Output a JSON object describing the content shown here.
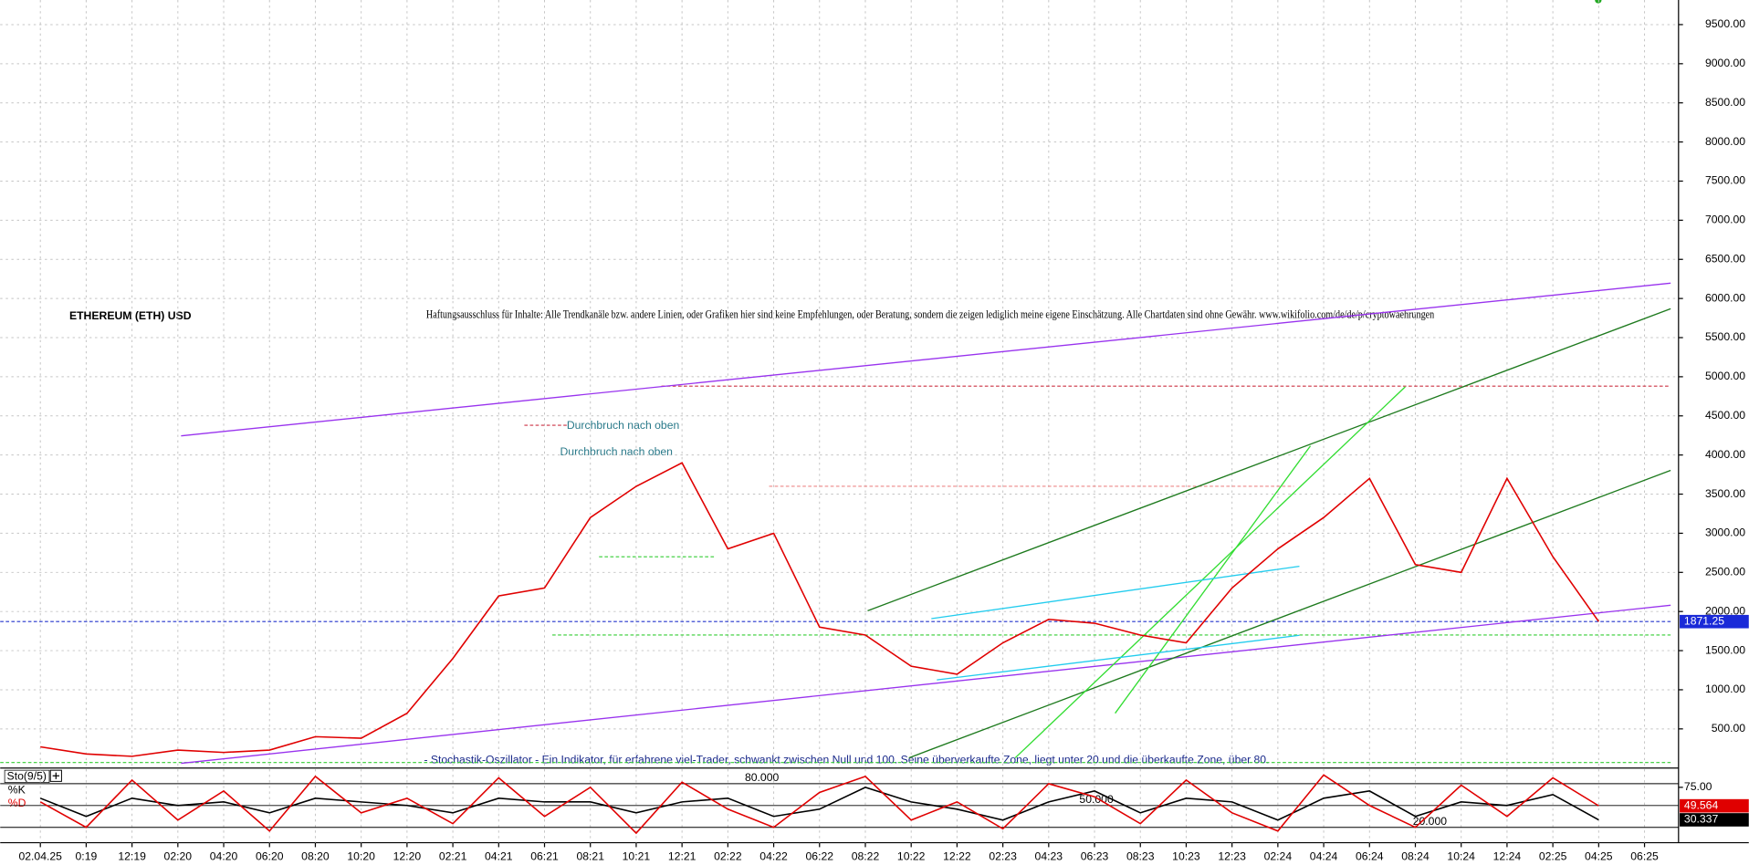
{
  "chart_data": [
    {
      "type": "line",
      "title": "ETHEREUM (ETH) USD",
      "disclaimer": "Haftungsausschluss für Inhalte: Alle Trendkanäle bzw. andere Linien, oder Grafiken hier sind keine Empfehlungen, oder Beratung, sondern die zeigen lediglich meine eigene Einschätzung. Alle Chartdaten sind ohne Gewähr. www.wikifolio.com/de/de/p/cryptowaehrungen",
      "annotations": [
        "Durchbruch nach oben",
        "Durchbruch nach oben"
      ],
      "categories": [
        "02.04.25",
        "0:19",
        "12:19",
        "02:20",
        "04:20",
        "06:20",
        "08:20",
        "10:20",
        "12:20",
        "02:21",
        "04:21",
        "06:21",
        "08:21",
        "10:21",
        "12:21",
        "02:22",
        "04:22",
        "06:22",
        "08:22",
        "10:22",
        "12:22",
        "02:23",
        "04:23",
        "06:23",
        "08:23",
        "10:23",
        "12:23",
        "02:24",
        "04:24",
        "06:24",
        "08:24",
        "10:24",
        "12:24",
        "02:25",
        "04:25",
        "06:25"
      ],
      "values": [
        270,
        180,
        150,
        230,
        200,
        230,
        400,
        380,
        700,
        1400,
        2200,
        2300,
        3200,
        3600,
        3900,
        2800,
        3000,
        1800,
        1700,
        1300,
        1200,
        1600,
        1900,
        1850,
        1700,
        1600,
        2300,
        2800,
        3200,
        3700,
        2600,
        2500,
        3700,
        2700,
        1871.25,
        null
      ],
      "color": "#e00000",
      "ylim": [
        0,
        9800
      ],
      "yticks": [
        {
          "value": 500,
          "label": "500.00"
        },
        {
          "value": 1000,
          "label": "1000.00"
        },
        {
          "value": 1500,
          "label": "1500.00"
        },
        {
          "value": 2000,
          "label": "2000.00"
        },
        {
          "value": 2500,
          "label": "2500.00"
        },
        {
          "value": 3000,
          "label": "3000.00"
        },
        {
          "value": 3500,
          "label": "3500.00"
        },
        {
          "value": 4000,
          "label": "4000.00"
        },
        {
          "value": 4500,
          "label": "4500.00"
        },
        {
          "value": 5000,
          "label": "5000.00"
        },
        {
          "value": 5500,
          "label": "5500.00"
        },
        {
          "value": 6000,
          "label": "6000.00"
        },
        {
          "value": 6500,
          "label": "6500.00"
        },
        {
          "value": 7000,
          "label": "7000.00"
        },
        {
          "value": 7500,
          "label": "7500.00"
        },
        {
          "value": 8000,
          "label": "8000.00"
        },
        {
          "value": 8500,
          "label": "8500.00"
        },
        {
          "value": 9000,
          "label": "9000.00"
        },
        {
          "value": 9500,
          "label": "9500.00"
        }
      ],
      "grid": true,
      "trendlines": [
        {
          "color": "#9933ee",
          "x": [
            3.07,
            35.57
          ],
          "y": [
            4245,
            6196
          ]
        },
        {
          "color": "#9933ee",
          "x": [
            3.07,
            35.57
          ],
          "y": [
            60,
            2080
          ]
        },
        {
          "color": "#1e7a1e",
          "x": [
            18.05,
            35.57
          ],
          "y": [
            2010,
            5869
          ]
        },
        {
          "color": "#1e7a1e",
          "x": [
            18.95,
            35.57
          ],
          "y": [
            130,
            3804
          ]
        },
        {
          "color": "#33dd33",
          "x": [
            21.27,
            29.78
          ],
          "y": [
            130,
            4872
          ]
        },
        {
          "color": "#33dd33",
          "x": [
            23.45,
            27.71
          ],
          "y": [
            700,
            4116
          ]
        },
        {
          "color": "#22ccee",
          "x": [
            19.44,
            27.47
          ],
          "y": [
            1909,
            2578
          ]
        },
        {
          "color": "#22ccee",
          "x": [
            19.56,
            27.47
          ],
          "y": [
            1126,
            1696
          ]
        }
      ],
      "levels": [
        {
          "value": 4880,
          "color": "#cc3344",
          "x": [
            13.55,
            35.57
          ]
        },
        {
          "value": 4380,
          "color": "#cc3344",
          "x": [
            10.56,
            11.53
          ]
        },
        {
          "value": 3600,
          "color": "#ee8888",
          "x": [
            15.9,
            27.35
          ]
        },
        {
          "value": 2700,
          "color": "#33cc33",
          "x": [
            12.19,
            14.7
          ]
        },
        {
          "value": 1871.25,
          "color": "#2233cc",
          "x": [
            -0.88,
            35.57
          ]
        },
        {
          "value": 1700,
          "color": "#33cc33",
          "x": [
            11.17,
            35.57
          ]
        },
        {
          "value": 70,
          "color": "#33cc33",
          "x": [
            -0.88,
            35.57
          ]
        }
      ]
    },
    {
      "type": "line",
      "title": "Sto(9/5)",
      "description": "- Stochastik-Oszillator - Ein Indikator, für erfahrene viel-Trader, schwankt zwischen Null und 100. Seine überverkaufte Zone, liegt unter 20 und die überkaufte Zone, über 80.",
      "series": [
        {
          "name": "%K",
          "color": "#000000",
          "values": [
            60,
            35,
            60,
            50,
            55,
            40,
            60,
            55,
            50,
            40,
            60,
            55,
            55,
            40,
            55,
            60,
            35,
            45,
            75,
            55,
            45,
            30,
            55,
            70,
            40,
            60,
            55,
            30,
            60,
            70,
            35,
            55,
            50,
            65,
            30.337,
            null
          ]
        },
        {
          "name": "%D",
          "color": "#e00000",
          "values": [
            55,
            20,
            85,
            30,
            70,
            15,
            90,
            40,
            60,
            25,
            88,
            35,
            75,
            12,
            82,
            45,
            20,
            68,
            90,
            30,
            55,
            18,
            80,
            62,
            25,
            85,
            40,
            15,
            92,
            50,
            20,
            78,
            35,
            88,
            49.564,
            null
          ]
        }
      ],
      "ylim": [
        5,
        100
      ],
      "yticks": [
        {
          "value": 75,
          "label": "75.00"
        }
      ],
      "levels": [
        {
          "value": 80,
          "label": "80.000"
        },
        {
          "value": 50,
          "label": "50.000"
        },
        {
          "value": 20,
          "label": "20.000"
        }
      ]
    }
  ]
}
